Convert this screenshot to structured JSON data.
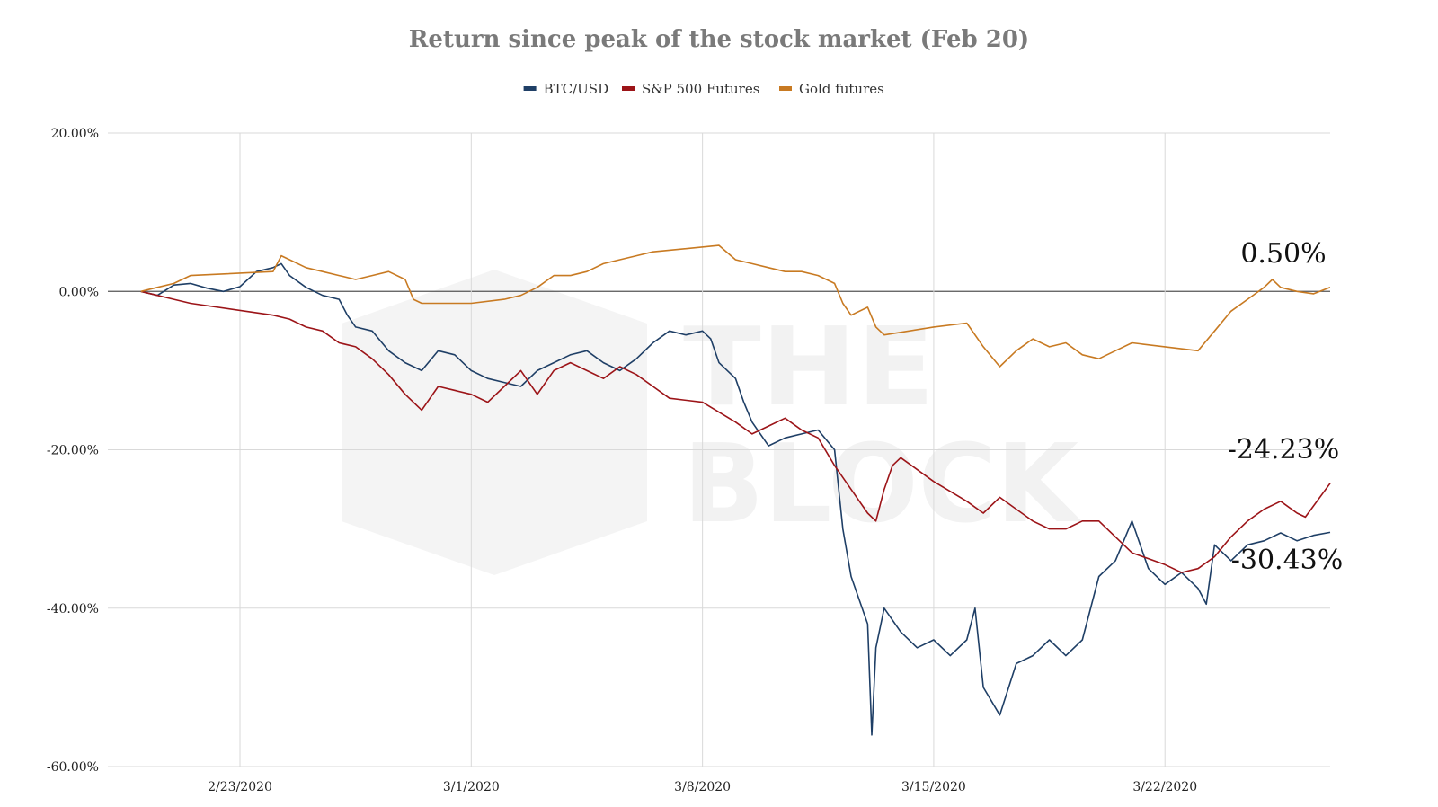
{
  "chart_data": {
    "type": "line",
    "title": "Return since peak of the stock market (Feb 20)",
    "xlabel": "",
    "ylabel": "",
    "x_range": [
      "2020-02-19",
      "2020-03-27"
    ],
    "ylim": [
      -60,
      20
    ],
    "y_ticks": [
      20,
      0,
      -20,
      -40,
      -60
    ],
    "y_tick_labels": [
      "20.00%",
      "0.00%",
      "-20.00%",
      "-40.00%",
      "-60.00%"
    ],
    "x_ticks": [
      "2020-02-23",
      "2020-03-01",
      "2020-03-08",
      "2020-03-15",
      "2020-03-22"
    ],
    "x_tick_labels": [
      "2/23/2020",
      "3/1/2020",
      "3/8/2020",
      "3/15/2020",
      "3/22/2020"
    ],
    "grid": true,
    "legend_position": "top-center",
    "watermark": "THE BLOCK",
    "series": [
      {
        "name": "BTC/USD",
        "color": "#1f3f66",
        "points": [
          [
            "2020-02-20 00:00",
            0.0
          ],
          [
            "2020-02-20 12:00",
            -0.5
          ],
          [
            "2020-02-21 00:00",
            0.8
          ],
          [
            "2020-02-21 12:00",
            1.0
          ],
          [
            "2020-02-22 00:00",
            0.4
          ],
          [
            "2020-02-22 12:00",
            0.0
          ],
          [
            "2020-02-23 00:00",
            0.6
          ],
          [
            "2020-02-23 12:00",
            2.5
          ],
          [
            "2020-02-24 00:00",
            3.0
          ],
          [
            "2020-02-24 06:00",
            3.5
          ],
          [
            "2020-02-24 12:00",
            2.0
          ],
          [
            "2020-02-25 00:00",
            0.5
          ],
          [
            "2020-02-25 12:00",
            -0.5
          ],
          [
            "2020-02-26 00:00",
            -1.0
          ],
          [
            "2020-02-26 06:00",
            -3.0
          ],
          [
            "2020-02-26 12:00",
            -4.5
          ],
          [
            "2020-02-27 00:00",
            -5.0
          ],
          [
            "2020-02-27 12:00",
            -7.5
          ],
          [
            "2020-02-28 00:00",
            -9.0
          ],
          [
            "2020-02-28 12:00",
            -10.0
          ],
          [
            "2020-02-29 00:00",
            -7.5
          ],
          [
            "2020-02-29 12:00",
            -8.0
          ],
          [
            "2020-03-01 00:00",
            -10.0
          ],
          [
            "2020-03-01 12:00",
            -11.0
          ],
          [
            "2020-03-02 00:00",
            -11.5
          ],
          [
            "2020-03-02 12:00",
            -12.0
          ],
          [
            "2020-03-03 00:00",
            -10.0
          ],
          [
            "2020-03-03 12:00",
            -9.0
          ],
          [
            "2020-03-04 00:00",
            -8.0
          ],
          [
            "2020-03-04 12:00",
            -7.5
          ],
          [
            "2020-03-05 00:00",
            -9.0
          ],
          [
            "2020-03-05 12:00",
            -10.0
          ],
          [
            "2020-03-06 00:00",
            -8.5
          ],
          [
            "2020-03-06 12:00",
            -6.5
          ],
          [
            "2020-03-07 00:00",
            -5.0
          ],
          [
            "2020-03-07 12:00",
            -5.5
          ],
          [
            "2020-03-08 00:00",
            -5.0
          ],
          [
            "2020-03-08 06:00",
            -6.0
          ],
          [
            "2020-03-08 12:00",
            -9.0
          ],
          [
            "2020-03-09 00:00",
            -11.0
          ],
          [
            "2020-03-09 06:00",
            -14.0
          ],
          [
            "2020-03-09 12:00",
            -16.5
          ],
          [
            "2020-03-10 00:00",
            -19.5
          ],
          [
            "2020-03-10 12:00",
            -18.5
          ],
          [
            "2020-03-11 00:00",
            -18.0
          ],
          [
            "2020-03-11 12:00",
            -17.5
          ],
          [
            "2020-03-12 00:00",
            -20.0
          ],
          [
            "2020-03-12 06:00",
            -30.0
          ],
          [
            "2020-03-12 12:00",
            -36.0
          ],
          [
            "2020-03-13 00:00",
            -42.0
          ],
          [
            "2020-03-13 03:00",
            -56.0
          ],
          [
            "2020-03-13 06:00",
            -45.0
          ],
          [
            "2020-03-13 12:00",
            -40.0
          ],
          [
            "2020-03-14 00:00",
            -43.0
          ],
          [
            "2020-03-14 12:00",
            -45.0
          ],
          [
            "2020-03-15 00:00",
            -44.0
          ],
          [
            "2020-03-15 12:00",
            -46.0
          ],
          [
            "2020-03-16 00:00",
            -44.0
          ],
          [
            "2020-03-16 06:00",
            -40.0
          ],
          [
            "2020-03-16 12:00",
            -50.0
          ],
          [
            "2020-03-17 00:00",
            -53.5
          ],
          [
            "2020-03-17 12:00",
            -47.0
          ],
          [
            "2020-03-18 00:00",
            -46.0
          ],
          [
            "2020-03-18 12:00",
            -44.0
          ],
          [
            "2020-03-19 00:00",
            -46.0
          ],
          [
            "2020-03-19 12:00",
            -44.0
          ],
          [
            "2020-03-20 00:00",
            -36.0
          ],
          [
            "2020-03-20 12:00",
            -34.0
          ],
          [
            "2020-03-21 00:00",
            -29.0
          ],
          [
            "2020-03-21 12:00",
            -35.0
          ],
          [
            "2020-03-22 00:00",
            -37.0
          ],
          [
            "2020-03-22 12:00",
            -35.5
          ],
          [
            "2020-03-23 00:00",
            -37.5
          ],
          [
            "2020-03-23 06:00",
            -39.5
          ],
          [
            "2020-03-23 12:00",
            -32.0
          ],
          [
            "2020-03-24 00:00",
            -34.0
          ],
          [
            "2020-03-24 12:00",
            -32.0
          ],
          [
            "2020-03-25 00:00",
            -31.5
          ],
          [
            "2020-03-25 12:00",
            -30.5
          ],
          [
            "2020-03-26 00:00",
            -31.5
          ],
          [
            "2020-03-26 12:00",
            -30.8
          ],
          [
            "2020-03-27 00:00",
            -30.43
          ]
        ]
      },
      {
        "name": "S&P 500 Futures",
        "color": "#9c1418",
        "points": [
          [
            "2020-02-20 00:00",
            0.0
          ],
          [
            "2020-02-20 12:00",
            -0.5
          ],
          [
            "2020-02-21 00:00",
            -1.0
          ],
          [
            "2020-02-21 12:00",
            -1.5
          ],
          [
            "2020-02-24 00:00",
            -3.0
          ],
          [
            "2020-02-24 12:00",
            -3.5
          ],
          [
            "2020-02-25 00:00",
            -4.5
          ],
          [
            "2020-02-25 12:00",
            -5.0
          ],
          [
            "2020-02-26 00:00",
            -6.5
          ],
          [
            "2020-02-26 12:00",
            -7.0
          ],
          [
            "2020-02-27 00:00",
            -8.5
          ],
          [
            "2020-02-27 12:00",
            -10.5
          ],
          [
            "2020-02-28 00:00",
            -13.0
          ],
          [
            "2020-02-28 12:00",
            -15.0
          ],
          [
            "2020-02-29 00:00",
            -12.0
          ],
          [
            "2020-03-01 00:00",
            -13.0
          ],
          [
            "2020-03-01 12:00",
            -14.0
          ],
          [
            "2020-03-02 00:00",
            -12.0
          ],
          [
            "2020-03-02 12:00",
            -10.0
          ],
          [
            "2020-03-03 00:00",
            -13.0
          ],
          [
            "2020-03-03 12:00",
            -10.0
          ],
          [
            "2020-03-04 00:00",
            -9.0
          ],
          [
            "2020-03-04 12:00",
            -10.0
          ],
          [
            "2020-03-05 00:00",
            -11.0
          ],
          [
            "2020-03-05 12:00",
            -9.5
          ],
          [
            "2020-03-06 00:00",
            -10.5
          ],
          [
            "2020-03-06 12:00",
            -12.0
          ],
          [
            "2020-03-07 00:00",
            -13.5
          ],
          [
            "2020-03-08 00:00",
            -14.0
          ],
          [
            "2020-03-09 00:00",
            -16.5
          ],
          [
            "2020-03-09 12:00",
            -18.0
          ],
          [
            "2020-03-10 00:00",
            -17.0
          ],
          [
            "2020-03-10 12:00",
            -16.0
          ],
          [
            "2020-03-11 00:00",
            -17.5
          ],
          [
            "2020-03-11 12:00",
            -18.5
          ],
          [
            "2020-03-12 00:00",
            -22.0
          ],
          [
            "2020-03-12 12:00",
            -25.0
          ],
          [
            "2020-03-13 00:00",
            -28.0
          ],
          [
            "2020-03-13 06:00",
            -29.0
          ],
          [
            "2020-03-13 12:00",
            -25.0
          ],
          [
            "2020-03-13 18:00",
            -22.0
          ],
          [
            "2020-03-14 00:00",
            -21.0
          ],
          [
            "2020-03-15 00:00",
            -24.0
          ],
          [
            "2020-03-16 00:00",
            -26.5
          ],
          [
            "2020-03-16 12:00",
            -28.0
          ],
          [
            "2020-03-17 00:00",
            -26.0
          ],
          [
            "2020-03-17 12:00",
            -27.5
          ],
          [
            "2020-03-18 00:00",
            -29.0
          ],
          [
            "2020-03-18 12:00",
            -30.0
          ],
          [
            "2020-03-19 00:00",
            -30.0
          ],
          [
            "2020-03-19 12:00",
            -29.0
          ],
          [
            "2020-03-20 00:00",
            -29.0
          ],
          [
            "2020-03-20 12:00",
            -31.0
          ],
          [
            "2020-03-21 00:00",
            -33.0
          ],
          [
            "2020-03-22 00:00",
            -34.5
          ],
          [
            "2020-03-22 12:00",
            -35.5
          ],
          [
            "2020-03-23 00:00",
            -35.0
          ],
          [
            "2020-03-23 12:00",
            -33.5
          ],
          [
            "2020-03-24 00:00",
            -31.0
          ],
          [
            "2020-03-24 12:00",
            -29.0
          ],
          [
            "2020-03-25 00:00",
            -27.5
          ],
          [
            "2020-03-25 12:00",
            -26.5
          ],
          [
            "2020-03-26 00:00",
            -28.0
          ],
          [
            "2020-03-26 06:00",
            -28.5
          ],
          [
            "2020-03-27 00:00",
            -24.23
          ]
        ]
      },
      {
        "name": "Gold futures",
        "color": "#c87a22",
        "points": [
          [
            "2020-02-20 00:00",
            0.0
          ],
          [
            "2020-02-20 12:00",
            0.5
          ],
          [
            "2020-02-21 00:00",
            1.0
          ],
          [
            "2020-02-21 12:00",
            2.0
          ],
          [
            "2020-02-24 00:00",
            2.5
          ],
          [
            "2020-02-24 06:00",
            4.5
          ],
          [
            "2020-02-24 12:00",
            4.0
          ],
          [
            "2020-02-25 00:00",
            3.0
          ],
          [
            "2020-02-25 12:00",
            2.5
          ],
          [
            "2020-02-26 00:00",
            2.0
          ],
          [
            "2020-02-26 12:00",
            1.5
          ],
          [
            "2020-02-27 00:00",
            2.0
          ],
          [
            "2020-02-27 12:00",
            2.5
          ],
          [
            "2020-02-28 00:00",
            1.5
          ],
          [
            "2020-02-28 06:00",
            -1.0
          ],
          [
            "2020-02-28 12:00",
            -1.5
          ],
          [
            "2020-03-01 00:00",
            -1.5
          ],
          [
            "2020-03-02 00:00",
            -1.0
          ],
          [
            "2020-03-02 12:00",
            -0.5
          ],
          [
            "2020-03-03 00:00",
            0.5
          ],
          [
            "2020-03-03 12:00",
            2.0
          ],
          [
            "2020-03-04 00:00",
            2.0
          ],
          [
            "2020-03-04 12:00",
            2.5
          ],
          [
            "2020-03-05 00:00",
            3.5
          ],
          [
            "2020-03-05 12:00",
            4.0
          ],
          [
            "2020-03-06 00:00",
            4.5
          ],
          [
            "2020-03-06 12:00",
            5.0
          ],
          [
            "2020-03-08 12:00",
            5.8
          ],
          [
            "2020-03-09 00:00",
            4.0
          ],
          [
            "2020-03-09 12:00",
            3.5
          ],
          [
            "2020-03-10 00:00",
            3.0
          ],
          [
            "2020-03-10 12:00",
            2.5
          ],
          [
            "2020-03-11 00:00",
            2.5
          ],
          [
            "2020-03-11 12:00",
            2.0
          ],
          [
            "2020-03-12 00:00",
            1.0
          ],
          [
            "2020-03-12 06:00",
            -1.5
          ],
          [
            "2020-03-12 12:00",
            -3.0
          ],
          [
            "2020-03-13 00:00",
            -2.0
          ],
          [
            "2020-03-13 06:00",
            -4.5
          ],
          [
            "2020-03-13 12:00",
            -5.5
          ],
          [
            "2020-03-15 00:00",
            -4.5
          ],
          [
            "2020-03-16 00:00",
            -4.0
          ],
          [
            "2020-03-16 12:00",
            -7.0
          ],
          [
            "2020-03-17 00:00",
            -9.5
          ],
          [
            "2020-03-17 12:00",
            -7.5
          ],
          [
            "2020-03-18 00:00",
            -6.0
          ],
          [
            "2020-03-18 12:00",
            -7.0
          ],
          [
            "2020-03-19 00:00",
            -6.5
          ],
          [
            "2020-03-19 12:00",
            -8.0
          ],
          [
            "2020-03-20 00:00",
            -8.5
          ],
          [
            "2020-03-20 12:00",
            -7.5
          ],
          [
            "2020-03-21 00:00",
            -6.5
          ],
          [
            "2020-03-22 00:00",
            -7.0
          ],
          [
            "2020-03-23 00:00",
            -7.5
          ],
          [
            "2020-03-23 12:00",
            -5.0
          ],
          [
            "2020-03-24 00:00",
            -2.5
          ],
          [
            "2020-03-24 12:00",
            -1.0
          ],
          [
            "2020-03-25 00:00",
            0.5
          ],
          [
            "2020-03-25 06:00",
            1.5
          ],
          [
            "2020-03-25 12:00",
            0.5
          ],
          [
            "2020-03-26 00:00",
            0.0
          ],
          [
            "2020-03-26 12:00",
            -0.3
          ],
          [
            "2020-03-27 00:00",
            0.5
          ]
        ]
      }
    ],
    "end_labels": [
      {
        "series": "Gold futures",
        "text": "0.50%",
        "value": 0.5
      },
      {
        "series": "S&P 500 Futures",
        "text": "-24.23%",
        "value": -24.23
      },
      {
        "series": "BTC/USD",
        "text": "-30.43%",
        "value": -30.43
      }
    ]
  }
}
